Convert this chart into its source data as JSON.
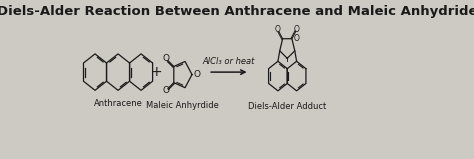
{
  "title": "Diels-Alder Reaction Between Anthracene and Maleic Anhydride",
  "title_fontsize": 9.5,
  "title_fontweight": "bold",
  "label_anthracene": "Anthracene",
  "label_maleic": "Maleic Anhyrdide",
  "label_adduct": "Diels-Alder Adduct",
  "label_reagent": "AlCl₃ or heat",
  "bg_color": "#cdc9c3",
  "text_color": "#1a1a1a",
  "figsize": [
    4.74,
    1.59
  ],
  "dpi": 100
}
